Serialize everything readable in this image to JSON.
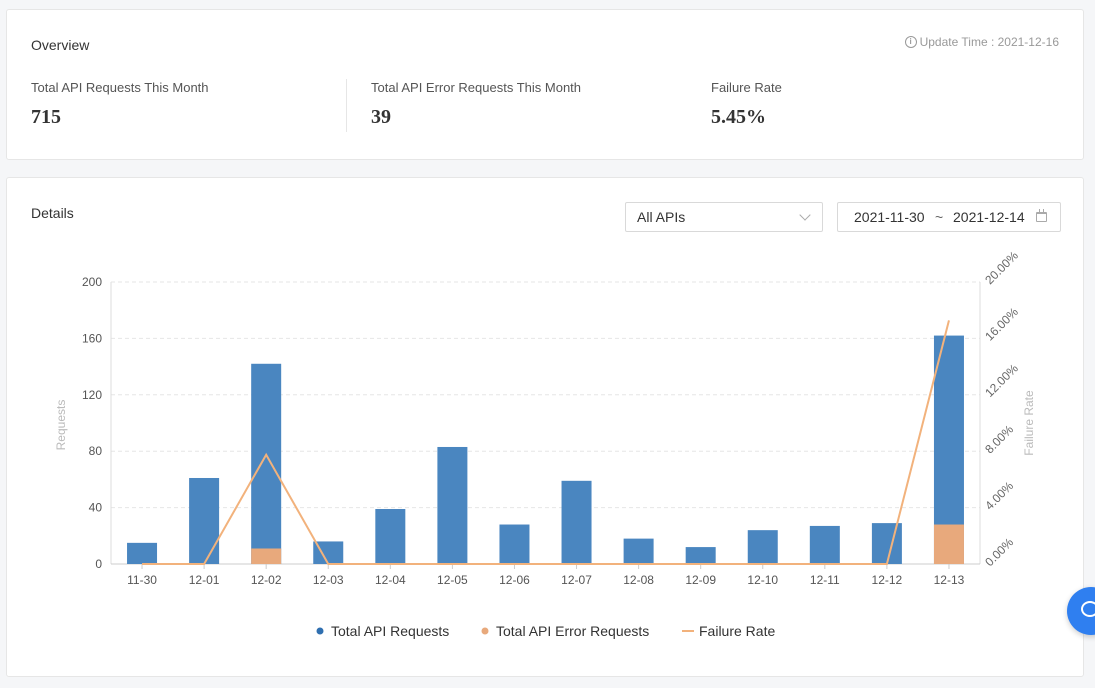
{
  "overview": {
    "title": "Overview",
    "update_time": "Update Time : 2021-12-16",
    "metrics": [
      {
        "label": "Total API Requests This Month",
        "value": "715"
      },
      {
        "label": "Total API Error Requests This Month",
        "value": "39"
      },
      {
        "label": "Failure Rate",
        "value": "5.45%"
      }
    ]
  },
  "details": {
    "title": "Details",
    "api_select": "All APIs",
    "date_start": "2021-11-30",
    "date_sep": "~",
    "date_end": "2021-12-14"
  },
  "colors": {
    "total": "#4a86c0",
    "error": "#e8a97c",
    "rate": "#f2b27c"
  },
  "chart_data": {
    "type": "bar",
    "categories": [
      "11-30",
      "12-01",
      "12-02",
      "12-03",
      "12-04",
      "12-05",
      "12-06",
      "12-07",
      "12-08",
      "12-09",
      "12-10",
      "12-11",
      "12-12",
      "12-13"
    ],
    "series": [
      {
        "name": "Total API Requests",
        "type": "bar",
        "values": [
          15,
          61,
          142,
          16,
          39,
          83,
          28,
          59,
          18,
          12,
          24,
          27,
          29,
          162
        ]
      },
      {
        "name": "Total API Error Requests",
        "type": "bar",
        "values": [
          0,
          0,
          11,
          0,
          0,
          0,
          0,
          0,
          0,
          0,
          0,
          0,
          0,
          28
        ]
      },
      {
        "name": "Failure Rate",
        "type": "line",
        "axis": "right",
        "values": [
          0,
          0,
          7.75,
          0,
          0,
          0,
          0,
          0,
          0,
          0,
          0,
          0,
          0,
          17.28
        ]
      }
    ],
    "y_left": {
      "label": "Requests",
      "min": 0,
      "max": 200,
      "ticks": [
        "0",
        "40",
        "80",
        "120",
        "160",
        "200"
      ]
    },
    "y_right": {
      "label": "Failure Rate",
      "min": 0,
      "max": 20,
      "ticks": [
        "0.00%",
        "4.00%",
        "8.00%",
        "12.00%",
        "16.00%",
        "20.00%"
      ]
    },
    "legend": [
      "Total API Requests",
      "Total API Error Requests",
      "Failure Rate"
    ]
  }
}
